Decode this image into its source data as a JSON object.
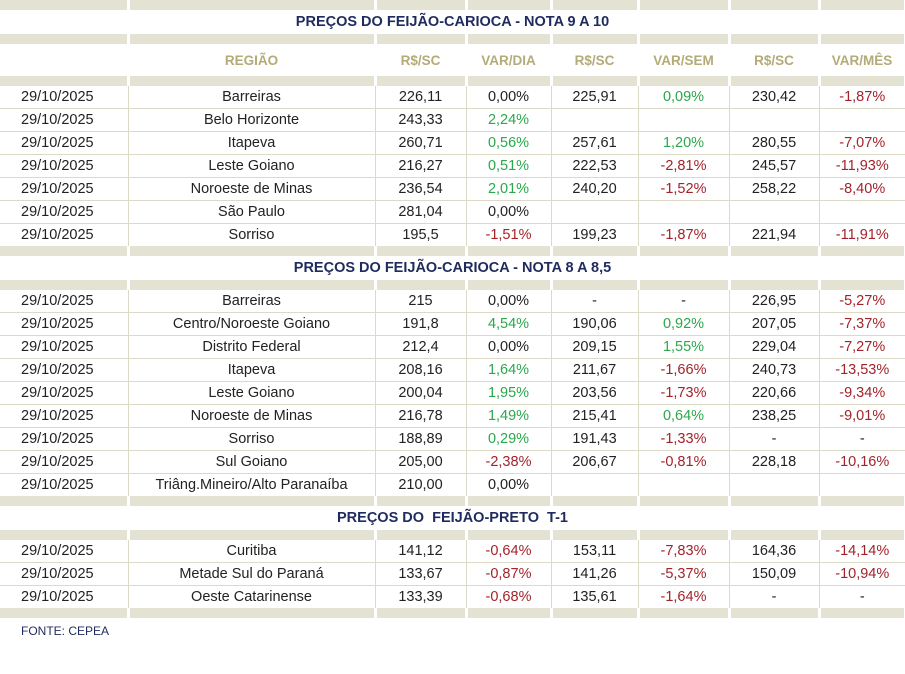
{
  "headers": {
    "regiao": "REGIÃO",
    "rs1": "R$/SC",
    "var_dia": "VAR/DIA",
    "rs2": "R$/SC",
    "var_sem": "VAR/SEM",
    "rs3": "R$/SC",
    "var_mes": "VAR/MÊS"
  },
  "sections": [
    {
      "title": "PREÇOS DO FEIJÃO-CARIOCA - NOTA 9 A 10",
      "show_header": true,
      "rows": [
        [
          "29/10/2025",
          "Barreiras",
          "226,11",
          "0,00%",
          "225,91",
          "0,09%",
          "230,42",
          "-1,87%"
        ],
        [
          "29/10/2025",
          "Belo Horizonte",
          "243,33",
          "2,24%",
          "",
          "",
          "",
          ""
        ],
        [
          "29/10/2025",
          "Itapeva",
          "260,71",
          "0,56%",
          "257,61",
          "1,20%",
          "280,55",
          "-7,07%"
        ],
        [
          "29/10/2025",
          "Leste Goiano",
          "216,27",
          "0,51%",
          "222,53",
          "-2,81%",
          "245,57",
          "-11,93%"
        ],
        [
          "29/10/2025",
          "Noroeste de Minas",
          "236,54",
          "2,01%",
          "240,20",
          "-1,52%",
          "258,22",
          "-8,40%"
        ],
        [
          "29/10/2025",
          "São Paulo",
          "281,04",
          "0,00%",
          "",
          "",
          "",
          ""
        ],
        [
          "29/10/2025",
          "Sorriso",
          "195,5",
          "-1,51%",
          "199,23",
          "-1,87%",
          "221,94",
          "-11,91%"
        ]
      ]
    },
    {
      "title": "PREÇOS DO FEIJÃO-CARIOCA - NOTA 8 A 8,5",
      "show_header": false,
      "rows": [
        [
          "29/10/2025",
          "Barreiras",
          "215",
          "0,00%",
          "-",
          "-",
          "226,95",
          "-5,27%"
        ],
        [
          "29/10/2025",
          "Centro/Noroeste Goiano",
          "191,8",
          "4,54%",
          "190,06",
          "0,92%",
          "207,05",
          "-7,37%"
        ],
        [
          "29/10/2025",
          "Distrito Federal",
          "212,4",
          "0,00%",
          "209,15",
          "1,55%",
          "229,04",
          "-7,27%"
        ],
        [
          "29/10/2025",
          "Itapeva",
          "208,16",
          "1,64%",
          "211,67",
          "-1,66%",
          "240,73",
          "-13,53%"
        ],
        [
          "29/10/2025",
          "Leste Goiano",
          "200,04",
          "1,95%",
          "203,56",
          "-1,73%",
          "220,66",
          "-9,34%"
        ],
        [
          "29/10/2025",
          "Noroeste de Minas",
          "216,78",
          "1,49%",
          "215,41",
          "0,64%",
          "238,25",
          "-9,01%"
        ],
        [
          "29/10/2025",
          "Sorriso",
          "188,89",
          "0,29%",
          "191,43",
          "-1,33%",
          "-",
          "-"
        ],
        [
          "29/10/2025",
          "Sul Goiano",
          "205,00",
          "-2,38%",
          "206,67",
          "-0,81%",
          "228,18",
          "-10,16%"
        ],
        [
          "29/10/2025",
          "Triâng.Mineiro/Alto Paranaíba",
          "210,00",
          "0,00%",
          "",
          "",
          "",
          ""
        ]
      ]
    },
    {
      "title": "PREÇOS DO  FEIJÃO-PRETO  T-1",
      "show_header": false,
      "rows": [
        [
          "29/10/2025",
          "Curitiba",
          "141,12",
          "-0,64%",
          "153,11",
          "-7,83%",
          "164,36",
          "-14,14%"
        ],
        [
          "29/10/2025",
          "Metade Sul do Paraná",
          "133,67",
          "-0,87%",
          "141,26",
          "-5,37%",
          "150,09",
          "-10,94%"
        ],
        [
          "29/10/2025",
          "Oeste Catarinense",
          "133,39",
          "-0,68%",
          "135,61",
          "-1,64%",
          "-",
          "-"
        ]
      ]
    }
  ],
  "footer": "FONTE: CEPEA"
}
